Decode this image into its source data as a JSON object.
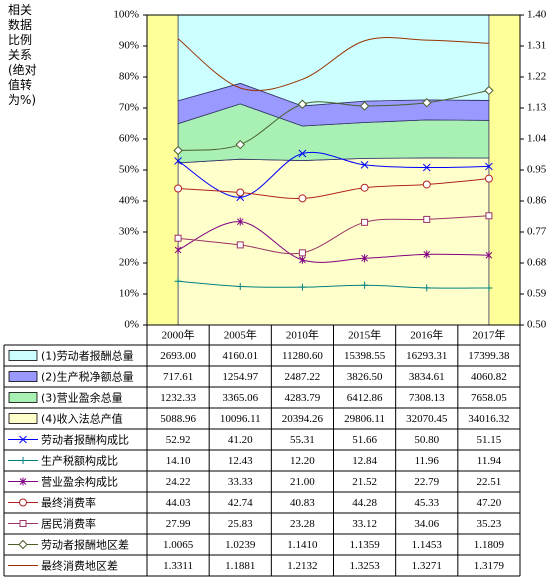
{
  "chart_data": {
    "type": "combo",
    "y_axis_label": "相关数据比例关系(绝对值转为%)",
    "categories": [
      "2000年",
      "2005年",
      "2010年",
      "2015年",
      "2016年",
      "2017年"
    ],
    "stack": "percent",
    "ylim": [
      0,
      100
    ],
    "yticks": [
      {
        "value": 0,
        "label": "0%"
      },
      {
        "value": 10,
        "label": "10%"
      },
      {
        "value": 20,
        "label": "20%"
      },
      {
        "value": 30,
        "label": "30%"
      },
      {
        "value": 40,
        "label": "40%"
      },
      {
        "value": 50,
        "label": "50%"
      },
      {
        "value": 60,
        "label": "60%"
      },
      {
        "value": 70,
        "label": "70%"
      },
      {
        "value": 80,
        "label": "80%"
      },
      {
        "value": 90,
        "label": "90%"
      },
      {
        "value": 100,
        "label": "100%"
      }
    ],
    "y2lim": [
      0.5,
      1.4
    ],
    "y2ticks": [
      {
        "value": 0.5,
        "label": "0.50"
      },
      0.59,
      0.68,
      0.77,
      0.86,
      0.95,
      1.04,
      1.13,
      1.22,
      1.31,
      {
        "value": 1.4,
        "label": "1.40"
      }
    ],
    "series": [
      {
        "name": "(1)劳动者报酬总量",
        "type": "area",
        "color": "#ccffff",
        "values": [
          2693,
          4160.01,
          11280.6,
          15398.55,
          16293.31,
          17399.38
        ],
        "value_labels": [
          "2693.00",
          "4160.01",
          "11280.60",
          "15398.55",
          "16293.31",
          "17399.38"
        ]
      },
      {
        "name": "(2)生产税净额总量",
        "type": "area",
        "color": "#9999ff",
        "values": [
          717.61,
          1254.97,
          2487.22,
          3826.5,
          3834.61,
          4060.82
        ],
        "value_labels": [
          "717.61",
          "1254.97",
          "2487.22",
          "3826.50",
          "3834.61",
          "4060.82"
        ]
      },
      {
        "name": "(3)营业盈余总量",
        "type": "area",
        "color": "#a8f0b4",
        "values": [
          1232.33,
          3365.06,
          4283.79,
          6412.86,
          7308.13,
          7658.05
        ],
        "value_labels": [
          "1232.33",
          "3365.06",
          "4283.79",
          "6412.86",
          "7308.13",
          "7658.05"
        ]
      },
      {
        "name": "(4)收入法总产值",
        "type": "area",
        "color": "#ffffcc",
        "values": [
          5088.96,
          10096.11,
          20394.26,
          29806.11,
          32070.45,
          34016.32
        ],
        "value_labels": [
          "5088.96",
          "10096.11",
          "20394.26",
          "29806.11",
          "32070.45",
          "34016.32"
        ]
      },
      {
        "name": "劳动者报酬构成比",
        "type": "line",
        "marker": "x",
        "color": "#0000ff",
        "values": [
          52.92,
          41.2,
          55.31,
          51.66,
          50.8,
          51.15
        ],
        "value_labels": [
          "52.92",
          "41.20",
          "55.31",
          "51.66",
          "50.80",
          "51.15"
        ]
      },
      {
        "name": "生产税额构成比",
        "type": "line",
        "marker": "plus",
        "color": "#008080",
        "values": [
          14.1,
          12.43,
          12.2,
          12.84,
          11.96,
          11.94
        ],
        "value_labels": [
          "14.10",
          "12.43",
          "12.20",
          "12.84",
          "11.96",
          "11.94"
        ]
      },
      {
        "name": "营业盈余构成比",
        "type": "line",
        "marker": "star",
        "color": "#800080",
        "values": [
          24.22,
          33.33,
          21,
          21.52,
          22.79,
          22.51
        ],
        "value_labels": [
          "24.22",
          "33.33",
          "21.00",
          "21.52",
          "22.79",
          "22.51"
        ]
      },
      {
        "name": "最终消费率",
        "type": "line",
        "marker": "circle",
        "color": "#b22222",
        "values": [
          44.03,
          42.74,
          40.83,
          44.28,
          45.33,
          47.2
        ],
        "value_labels": [
          "44.03",
          "42.74",
          "40.83",
          "44.28",
          "45.33",
          "47.20"
        ]
      },
      {
        "name": "居民消费率",
        "type": "line",
        "marker": "square",
        "color": "#993366",
        "values": [
          27.99,
          25.83,
          23.28,
          33.12,
          34.06,
          35.23
        ],
        "value_labels": [
          "27.99",
          "25.83",
          "23.28",
          "33.12",
          "34.06",
          "35.23"
        ]
      },
      {
        "name": "劳动者报酬地区差",
        "type": "line",
        "marker": "diamond",
        "axis": "y2",
        "color": "#4b5e2a",
        "values": [
          1.0065,
          1.0239,
          1.141,
          1.1359,
          1.1453,
          1.1809
        ],
        "value_labels": [
          "1.0065",
          "1.0239",
          "1.1410",
          "1.1359",
          "1.1453",
          "1.1809"
        ]
      },
      {
        "name": "最终消费地区差",
        "type": "line",
        "marker": "none",
        "axis": "y2",
        "color": "#993300",
        "values": [
          1.3311,
          1.1881,
          1.2132,
          1.3253,
          1.3271,
          1.3179
        ],
        "value_labels": [
          "1.3311",
          "1.1881",
          "1.2132",
          "1.3253",
          "1.3271",
          "1.3179"
        ]
      }
    ]
  }
}
